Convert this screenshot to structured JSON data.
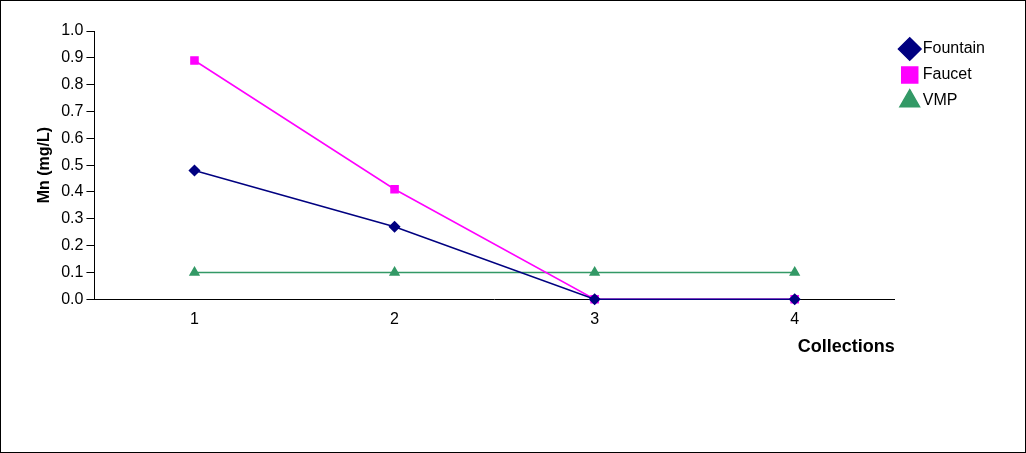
{
  "chart_data": {
    "type": "line",
    "y_label": "Mn (mg/L)",
    "x_label": "Collections",
    "categories": [
      "1",
      "2",
      "3",
      "4"
    ],
    "series": [
      {
        "name": "Fountain",
        "color": "#000080",
        "marker": "diamond",
        "values": [
          0.48,
          0.27,
          0.0,
          0.0
        ]
      },
      {
        "name": "Faucet",
        "color": "#ff00ff",
        "marker": "square",
        "values": [
          0.89,
          0.41,
          0.0,
          0.0
        ]
      },
      {
        "name": "VMP",
        "color": "#339966",
        "marker": "triangle",
        "values": [
          0.1,
          0.1,
          0.1,
          0.1
        ]
      }
    ],
    "ylim": [
      0,
      1
    ],
    "yticks": [
      {
        "value": 0,
        "label": "0.0"
      },
      0.1,
      0.2,
      0.3,
      0.4,
      0.5,
      0.6,
      0.7,
      0.8,
      0.9,
      {
        "value": 1,
        "label": "1.0"
      }
    ],
    "grid": false,
    "legend": "right"
  }
}
